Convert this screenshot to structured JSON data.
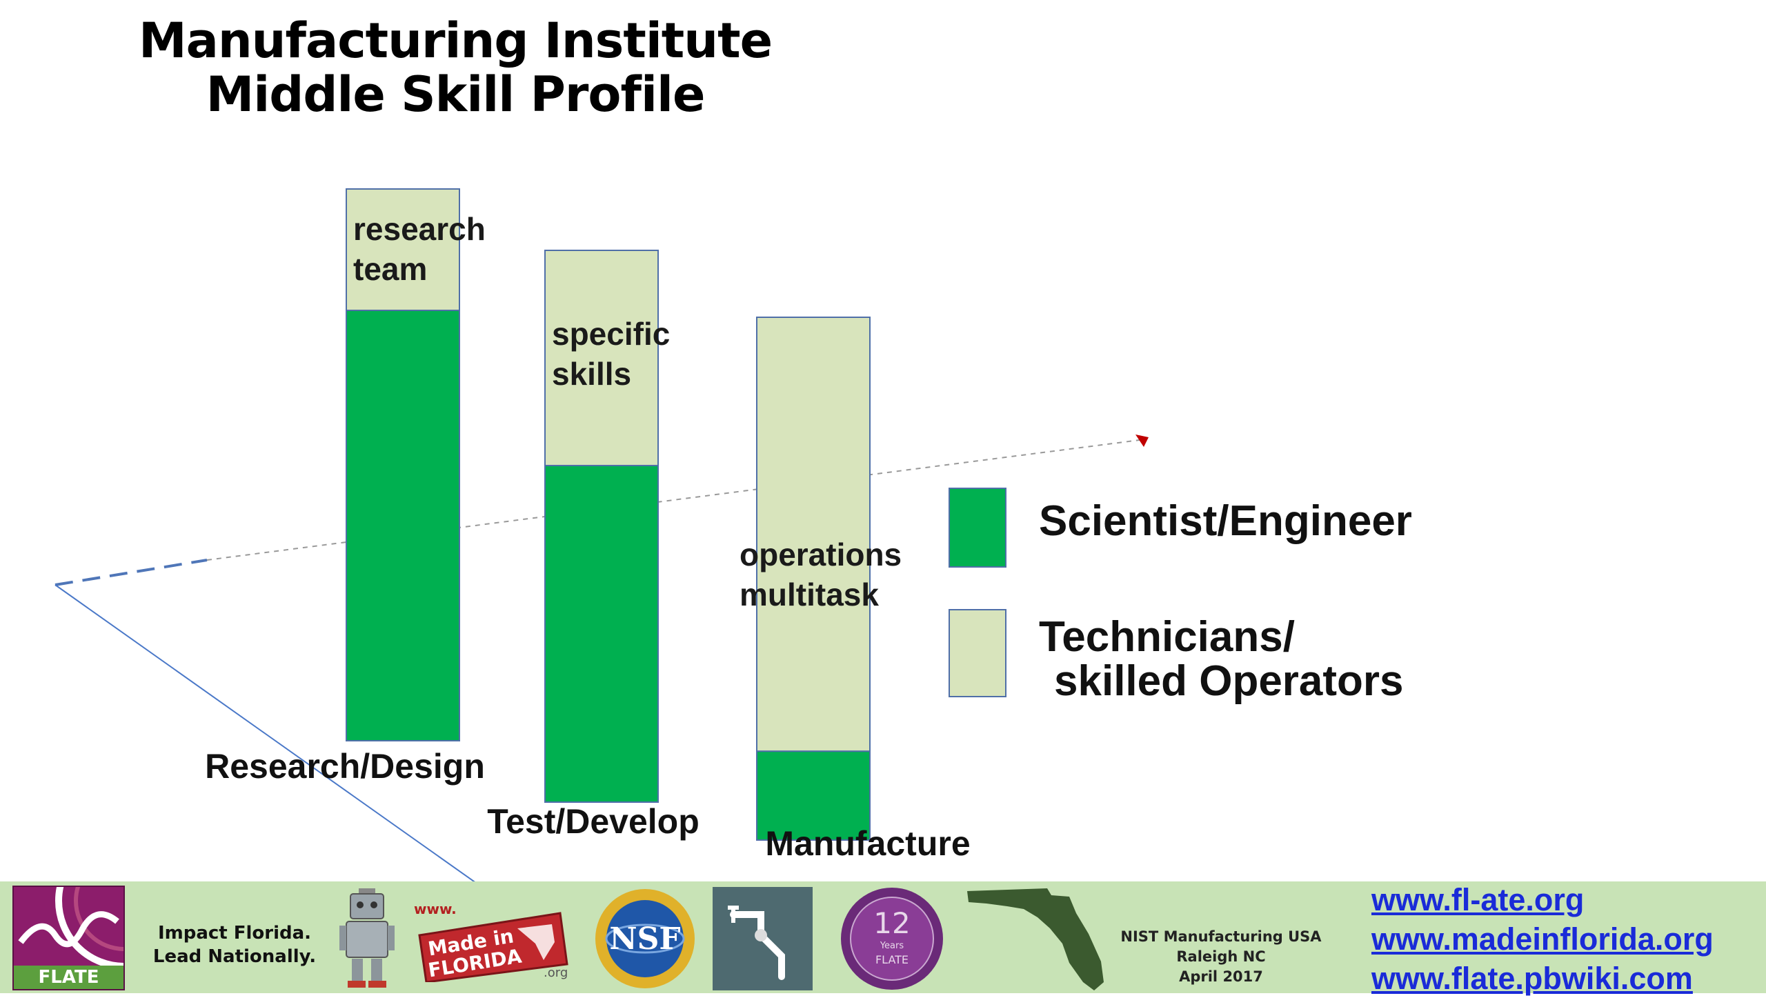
{
  "slide_title": [
    "Manufacturing Institute",
    "Middle Skill Profile"
  ],
  "chart_data": {
    "type": "bar",
    "stacked": true,
    "categories": [
      "Research/Design",
      "Test/Develop",
      "Manufacture"
    ],
    "series": [
      {
        "name": "Scientist/Engineer",
        "values": [
          78,
          61,
          17
        ],
        "color": "#00b050"
      },
      {
        "name": "Technicians/ skilled Operators",
        "values": [
          22,
          39,
          83
        ],
        "color": "#d8e4bc"
      }
    ],
    "bar_labels": [
      [
        "research",
        "team"
      ],
      [
        "specific",
        "skills"
      ],
      [
        "operations",
        "multitask"
      ]
    ],
    "legend": [
      {
        "lines": [
          "Scientist/Engineer"
        ],
        "color": "#00b050"
      },
      {
        "lines": [
          "Technicians/",
          "skilled Operators"
        ],
        "color": "#d8e4bc"
      }
    ],
    "legend_position": "right",
    "grid": false
  },
  "footer": {
    "logo_word": "FLATE",
    "tagline": [
      "Impact Florida.",
      "Lead Nationally."
    ],
    "made_in_florida": {
      "www": "www.",
      "text": [
        "Made in",
        "FLORIDA"
      ],
      "org": ".org"
    },
    "nsf_text": "NSF",
    "badge": {
      "number": "12",
      "small": "Years",
      "word": "FLATE"
    },
    "event": [
      "NIST Manufacturing USA",
      "Raleigh NC",
      "April 2017"
    ],
    "links": [
      "www.fl-ate.org",
      "www.madeinflorida.org",
      "www.flate.pbwiki.com"
    ],
    "colors": {
      "band": "#c8e3b6",
      "link": "#1a2bd8",
      "flate": "#8c1d6b"
    }
  }
}
